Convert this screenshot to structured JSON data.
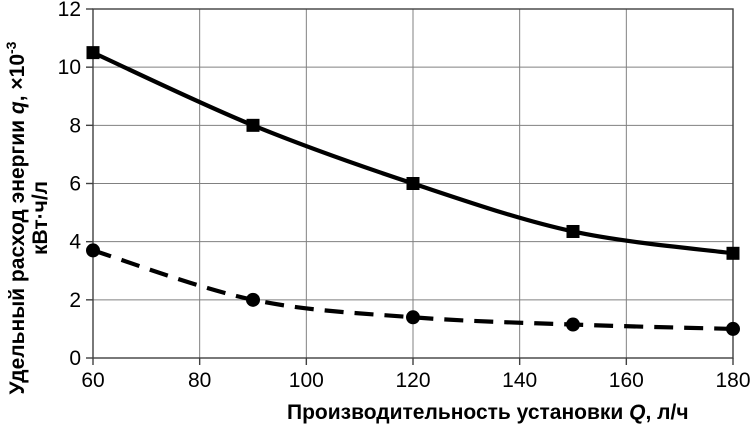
{
  "chart_data": {
    "type": "line",
    "title": "",
    "xlabel_main": "Производительность установки ",
    "xlabel_var": "Q",
    "xlabel_unit": ", л/ч",
    "ylabel_main": "Удельный расход энергии ",
    "ylabel_var": "q",
    "ylabel_mult": ", ×10",
    "ylabel_sup": "-3",
    "ylabel_unit": "кВт·ч/л",
    "xlim": [
      60,
      180
    ],
    "ylim": [
      0,
      12
    ],
    "x_ticks": [
      60,
      80,
      100,
      120,
      140,
      160,
      180
    ],
    "y_ticks": [
      0,
      2,
      4,
      6,
      8,
      10,
      12
    ],
    "x": [
      60,
      90,
      120,
      150,
      180
    ],
    "series": [
      {
        "name": "solid-square-series",
        "line_style": "solid",
        "marker": "square",
        "values": [
          10.5,
          8.0,
          6.0,
          4.35,
          3.6
        ]
      },
      {
        "name": "dashed-circle-series",
        "line_style": "dashed",
        "marker": "circle",
        "values": [
          3.7,
          2.0,
          1.4,
          1.15,
          1.0
        ]
      }
    ],
    "grid": true,
    "legend": false,
    "colors": {
      "series": "#000000",
      "gridline": "#808080",
      "border": "#404040",
      "background": "#ffffff"
    }
  }
}
